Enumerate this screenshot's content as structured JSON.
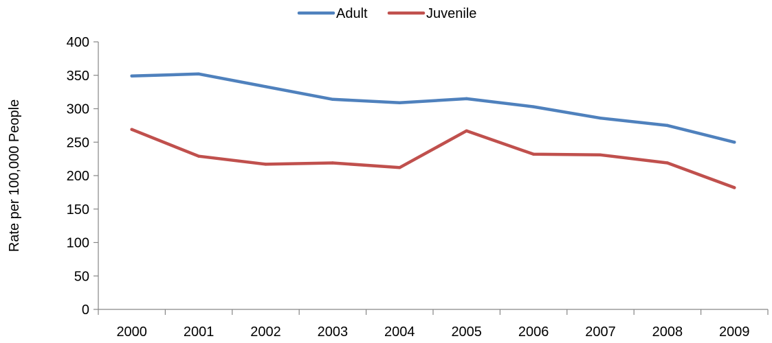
{
  "chart_data": {
    "type": "line",
    "categories": [
      "2000",
      "2001",
      "2002",
      "2003",
      "2004",
      "2005",
      "2006",
      "2007",
      "2008",
      "2009"
    ],
    "series": [
      {
        "name": "Adult",
        "color": "#4F81BD",
        "values": [
          349,
          352,
          333,
          314,
          309,
          315,
          303,
          286,
          275,
          250
        ]
      },
      {
        "name": "Juvenile",
        "color": "#C0504D",
        "values": [
          269,
          229,
          217,
          219,
          212,
          267,
          232,
          231,
          219,
          182
        ]
      }
    ],
    "title": "",
    "xlabel": "",
    "ylabel": "Rate per 100,000 People",
    "ylim": [
      0,
      400
    ],
    "yticks": [
      "0",
      "50",
      "100",
      "150",
      "200",
      "250",
      "300",
      "350",
      "400"
    ],
    "grid": false,
    "legend_position": "top-center"
  }
}
